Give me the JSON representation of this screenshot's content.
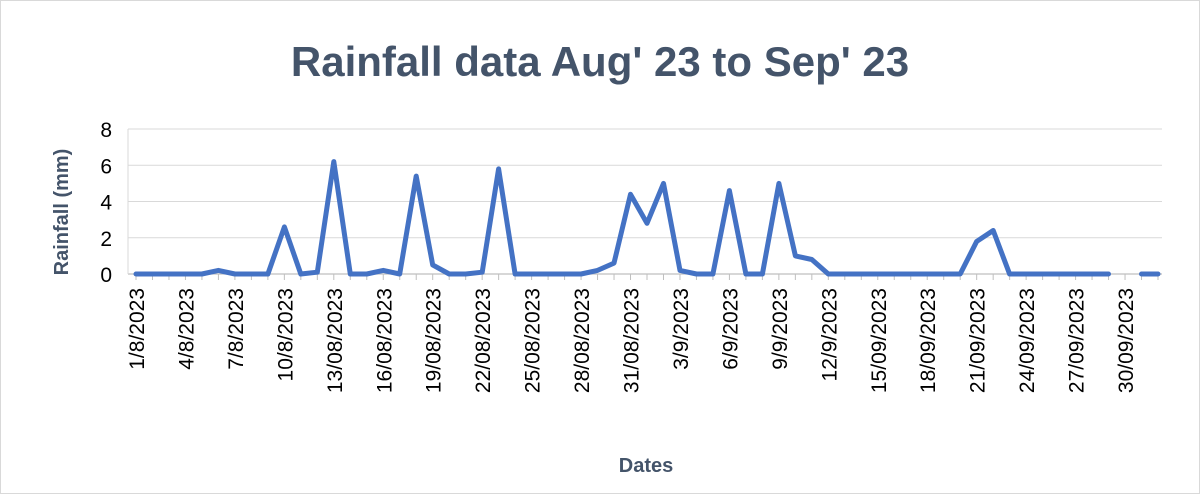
{
  "chart_data": {
    "type": "line",
    "title": "Rainfall data Aug' 23 to Sep' 23",
    "xlabel": "Dates",
    "ylabel": "Rainfall (mm)",
    "ylim": [
      0,
      8
    ],
    "yticks": [
      "0",
      "2",
      "4",
      "6",
      "8"
    ],
    "grid": true,
    "legend": "none",
    "line_color": "#4472c4",
    "x_tick_labels": [
      "1/8/2023",
      "4/8/2023",
      "7/8/2023",
      "10/8/2023",
      "13/08/2023",
      "16/08/2023",
      "19/08/2023",
      "22/08/2023",
      "25/08/2023",
      "28/08/2023",
      "31/08/2023",
      "3/9/2023",
      "6/9/2023",
      "9/9/2023",
      "12/9/2023",
      "15/09/2023",
      "18/09/2023",
      "21/09/2023",
      "24/09/2023",
      "27/09/2023",
      "30/09/2023"
    ],
    "series": [
      {
        "values": [
          0,
          0,
          0,
          0,
          0,
          0.2,
          0,
          0,
          0,
          2.6,
          0,
          0.1,
          6.2,
          0,
          0,
          0.2,
          0,
          5.4,
          0.5,
          0,
          0,
          0.1,
          5.8,
          0,
          0,
          0,
          0,
          0,
          0.2,
          0.6,
          4.4,
          2.8,
          5.0,
          0.2,
          0,
          0,
          4.6,
          0,
          0,
          5.0,
          1.0,
          0.8,
          0,
          0,
          0,
          0,
          0,
          0,
          0,
          0,
          0,
          1.8,
          2.4,
          0,
          0,
          0,
          0,
          0,
          0,
          0,
          null,
          0,
          0
        ]
      }
    ]
  }
}
